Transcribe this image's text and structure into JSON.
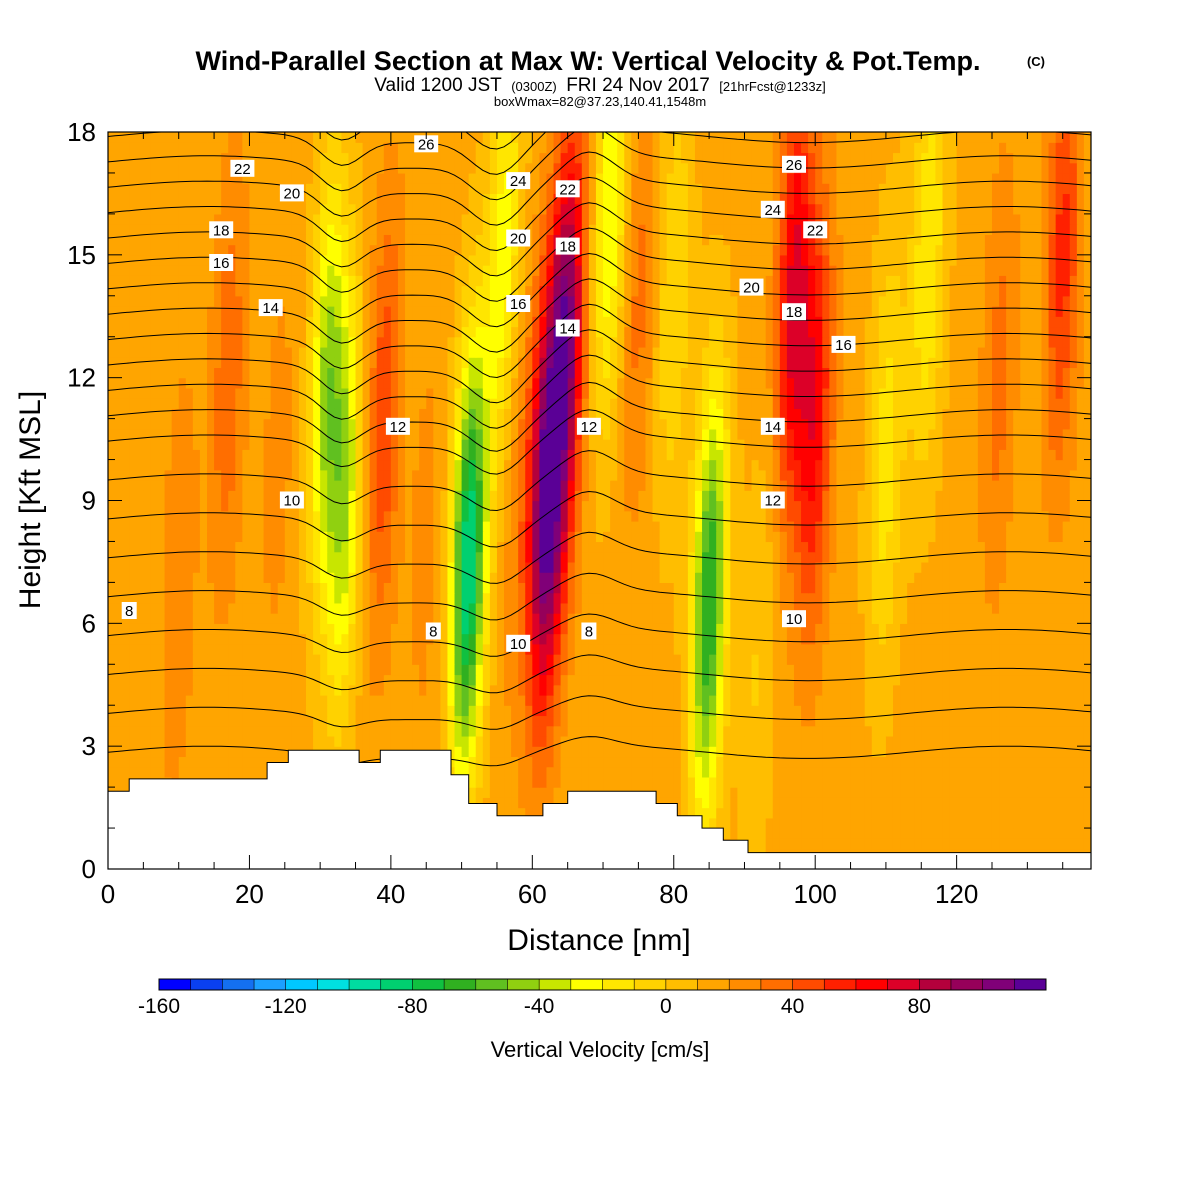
{
  "title": "Wind-Parallel Section at Max W: Vertical Velocity & Pot.Temp.",
  "title_badge": "(C)",
  "subtitle": {
    "valid": "Valid 1200 JST",
    "zulu": "(0300Z)",
    "date": "FRI 24 Nov 2017",
    "forecast": "[21hrFcst@1233z]"
  },
  "box_info": "boxWmax=82@37.23,140.41,1548m",
  "chart_data": {
    "type": "heatmap",
    "xlabel": "Distance [nm]",
    "ylabel": "Height [Kft MSL]",
    "xlim": [
      0,
      139
    ],
    "ylim": [
      0,
      18
    ],
    "x_ticks": [
      "0",
      "20",
      "40",
      "60",
      "80",
      "100",
      "120"
    ],
    "y_ticks": [
      "0",
      "3",
      "6",
      "9",
      "12",
      "15",
      "18"
    ],
    "colorbar": {
      "title": "Vertical Velocity [cm/s]",
      "tick_labels": [
        "-160",
        "-120",
        "-80",
        "-40",
        "0",
        "40",
        "80"
      ],
      "colors": [
        "#0000ff",
        "#0a40f0",
        "#1470f0",
        "#1ca0ff",
        "#00c8ff",
        "#00e0e0",
        "#00dca0",
        "#00d070",
        "#10c040",
        "#30b020",
        "#60c020",
        "#90d010",
        "#c8e600",
        "#ffff00",
        "#ffe600",
        "#ffd200",
        "#ffbe00",
        "#ffa500",
        "#ff8c00",
        "#ff6e00",
        "#ff4b00",
        "#ff2000",
        "#ff0000",
        "#dc0028",
        "#b4003c",
        "#96005a",
        "#800078",
        "#5a0096"
      ]
    },
    "w_bands": [
      {
        "x": 3,
        "w": 6,
        "z": 10
      },
      {
        "x": 10,
        "w": 15,
        "z": 7
      },
      {
        "x": 17,
        "w": 24,
        "z": 12
      },
      {
        "x": 24,
        "w": 10,
        "z": 10
      },
      {
        "x": 31,
        "w": -55,
        "z": 12
      },
      {
        "x": 33.5,
        "w": -50,
        "z": 9
      },
      {
        "x": 39,
        "w": 35,
        "z": 11
      },
      {
        "x": 45,
        "w": 10,
        "z": 8
      },
      {
        "x": 51,
        "w": -105,
        "z": 7.5
      },
      {
        "x": 56,
        "w": -40,
        "z": 15
      },
      {
        "x": 58,
        "w": 15,
        "z": 9
      },
      {
        "x": 62,
        "w": 100,
        "z": 9
      },
      {
        "x": 65,
        "w": 80,
        "z": 13
      },
      {
        "x": 71,
        "w": -45,
        "z": 16
      },
      {
        "x": 75,
        "w": 20,
        "z": 14
      },
      {
        "x": 80,
        "w": -25,
        "z": 14
      },
      {
        "x": 85,
        "w": -85,
        "z": 6.5
      },
      {
        "x": 92,
        "w": -15,
        "z": 5
      },
      {
        "x": 97,
        "w": 60,
        "z": 14
      },
      {
        "x": 100,
        "w": 50,
        "z": 11
      },
      {
        "x": 110,
        "w": -30,
        "z": 10
      },
      {
        "x": 116,
        "w": -35,
        "z": 15
      },
      {
        "x": 126,
        "w": 20,
        "z": 12
      },
      {
        "x": 135,
        "w": 40,
        "z": 15
      }
    ],
    "theta_levels": [
      5,
      6,
      7,
      8,
      9,
      10,
      11,
      12,
      13,
      14,
      15,
      16,
      17,
      18,
      19,
      20,
      21,
      22,
      23,
      24,
      25,
      26,
      27,
      28
    ],
    "theta_labels": [
      {
        "x": 3,
        "z": 6.3,
        "value": "8"
      },
      {
        "x": 46,
        "z": 5.8,
        "value": "8"
      },
      {
        "x": 68,
        "z": 5.8,
        "value": "8"
      },
      {
        "x": 58,
        "z": 5.5,
        "value": "10"
      },
      {
        "x": 97,
        "z": 6.1,
        "value": "10"
      },
      {
        "x": 26,
        "z": 9,
        "value": "10"
      },
      {
        "x": 41,
        "z": 10.8,
        "value": "12"
      },
      {
        "x": 68,
        "z": 10.8,
        "value": "12"
      },
      {
        "x": 94,
        "z": 9,
        "value": "12"
      },
      {
        "x": 23,
        "z": 13.7,
        "value": "14"
      },
      {
        "x": 65,
        "z": 13.2,
        "value": "14"
      },
      {
        "x": 94,
        "z": 10.8,
        "value": "14"
      },
      {
        "x": 16,
        "z": 14.8,
        "value": "16"
      },
      {
        "x": 58,
        "z": 13.8,
        "value": "16"
      },
      {
        "x": 104,
        "z": 12.8,
        "value": "16"
      },
      {
        "x": 16,
        "z": 15.6,
        "value": "18"
      },
      {
        "x": 65,
        "z": 15.2,
        "value": "18"
      },
      {
        "x": 97,
        "z": 13.6,
        "value": "18"
      },
      {
        "x": 26,
        "z": 16.5,
        "value": "20"
      },
      {
        "x": 58,
        "z": 15.4,
        "value": "20"
      },
      {
        "x": 91,
        "z": 14.2,
        "value": "20"
      },
      {
        "x": 19,
        "z": 17.1,
        "value": "22"
      },
      {
        "x": 65,
        "z": 16.6,
        "value": "22"
      },
      {
        "x": 100,
        "z": 15.6,
        "value": "22"
      },
      {
        "x": 58,
        "z": 16.8,
        "value": "24"
      },
      {
        "x": 94,
        "z": 16.1,
        "value": "24"
      },
      {
        "x": 45,
        "z": 17.7,
        "value": "26"
      },
      {
        "x": 97,
        "z": 17.2,
        "value": "26"
      }
    ],
    "terrain": [
      [
        0,
        1.9
      ],
      [
        3,
        2.2
      ],
      [
        22.5,
        2.6
      ],
      [
        25.5,
        2.9
      ],
      [
        35.5,
        2.6
      ],
      [
        38.5,
        2.9
      ],
      [
        48.5,
        2.3
      ],
      [
        51,
        1.6
      ],
      [
        55,
        1.3
      ],
      [
        61.5,
        1.6
      ],
      [
        65,
        1.9
      ],
      [
        77.5,
        1.6
      ],
      [
        80.5,
        1.3
      ],
      [
        84,
        1
      ],
      [
        87,
        0.7
      ],
      [
        90.5,
        0.4
      ],
      [
        139,
        0.2
      ]
    ]
  }
}
